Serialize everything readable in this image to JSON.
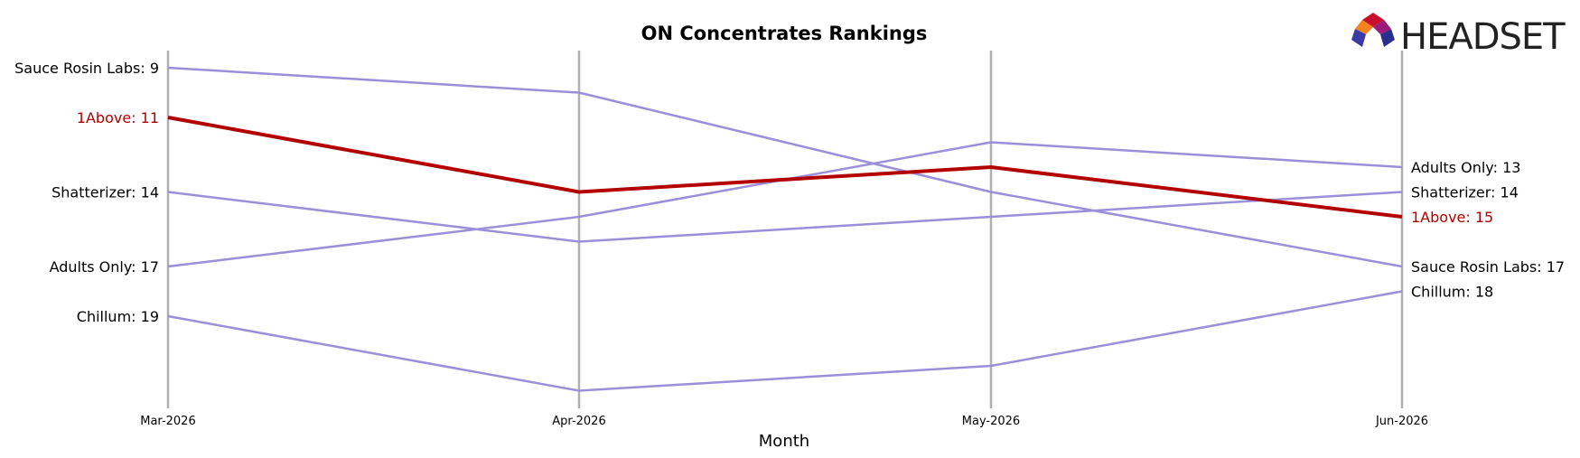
{
  "chart_data": {
    "type": "line",
    "title": "ON Concentrates Rankings",
    "xlabel": "Month",
    "ylabel": "",
    "categories": [
      "Mar-2026",
      "Apr-2026",
      "May-2026",
      "Jun-2026"
    ],
    "y_inverted": true,
    "ylim": [
      8,
      23
    ],
    "grid": "vertical lines at each month",
    "highlight_color": "#b30000",
    "series_color": "#9b8fd9",
    "series": [
      {
        "name": "Sauce Rosin Labs",
        "values": [
          9,
          10,
          14,
          17
        ],
        "highlight": false,
        "left_label": "Sauce Rosin Labs: 9",
        "right_label": "Sauce Rosin Labs: 17"
      },
      {
        "name": "Shatterizer",
        "values": [
          14,
          16,
          15,
          14
        ],
        "highlight": false,
        "left_label": "Shatterizer: 14",
        "right_label": "Shatterizer: 14"
      },
      {
        "name": "Adults Only",
        "values": [
          17,
          15,
          12,
          13
        ],
        "highlight": false,
        "left_label": "Adults Only: 17",
        "right_label": "Adults Only: 13"
      },
      {
        "name": "Chillum",
        "values": [
          19,
          22,
          21,
          18
        ],
        "highlight": false,
        "left_label": "Chillum: 19",
        "right_label": "Chillum: 18"
      },
      {
        "name": "1Above",
        "values": [
          11,
          14,
          13,
          15
        ],
        "highlight": true,
        "left_label": "1Above: 11",
        "right_label": "1Above: 15"
      }
    ]
  },
  "logo": {
    "text": "HEADSET",
    "icon": "headset-logo-icon"
  }
}
